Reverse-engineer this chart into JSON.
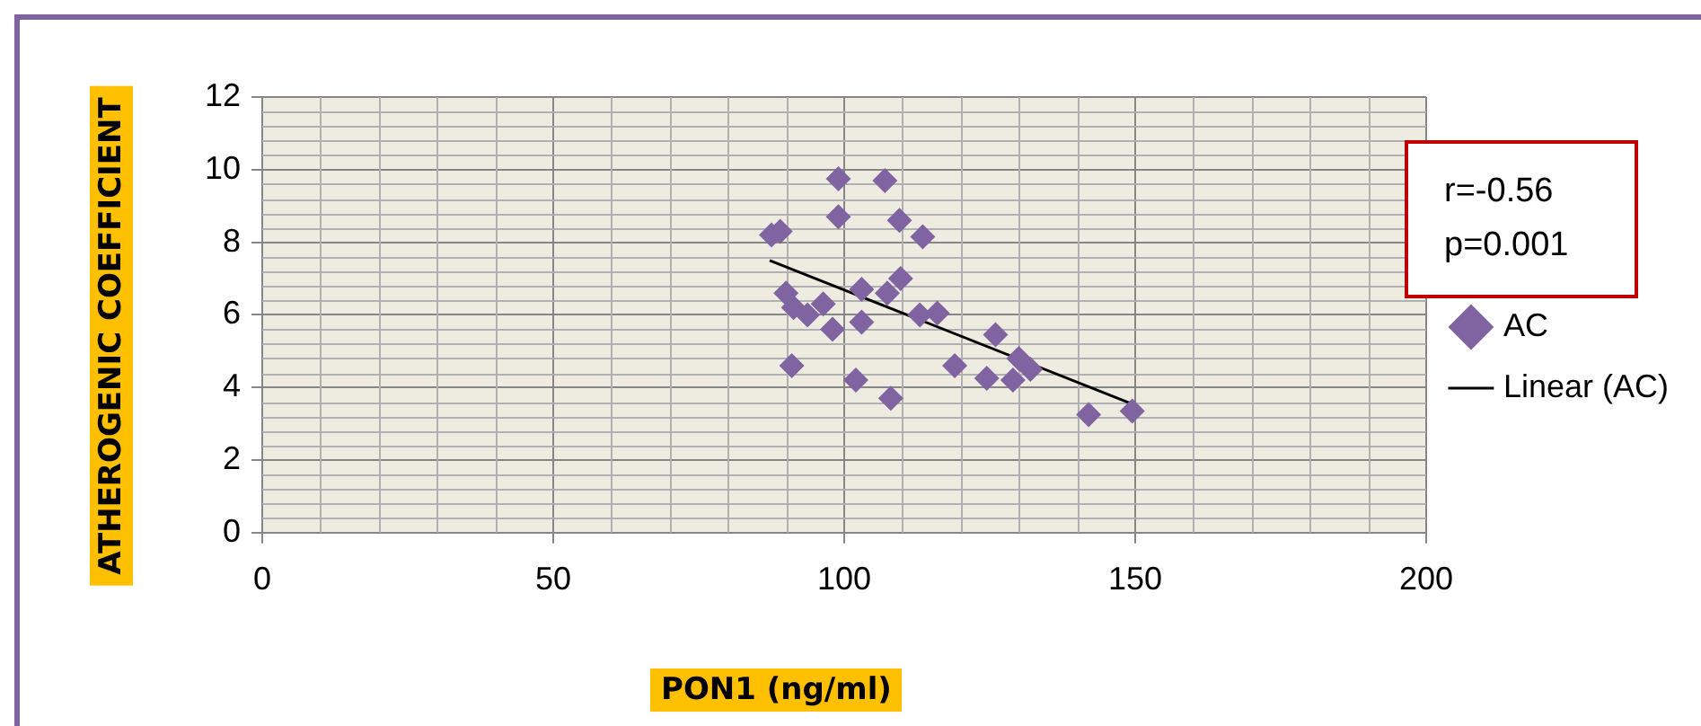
{
  "chart_data": {
    "type": "scatter",
    "xlabel": "PON1 (ng/ml)",
    "ylabel": "ATHEROGENIC COEFFICIENT",
    "annotations": [
      "r=-0.56",
      "p=0.001"
    ],
    "xlim": [
      0,
      200
    ],
    "xticks": [
      0,
      50,
      100,
      150,
      200
    ],
    "ylim": [
      0,
      12
    ],
    "yticks": [
      0,
      2,
      4,
      6,
      8,
      10,
      12
    ],
    "grid": true,
    "legend": "right",
    "marker": "diamond",
    "series": [
      {
        "name": "AC",
        "color": "#8064a2",
        "x": [
          87.5,
          89,
          99,
          107,
          99,
          109.5,
          113.5,
          109.7,
          103,
          107.4,
          113,
          116,
          103,
          98,
          90,
          93.7,
          96.4,
          91.3,
          91,
          102,
          108,
          119,
          124.5,
          126,
          129,
          130,
          132,
          142,
          149.5
        ],
        "values": [
          8.2,
          8.3,
          9.75,
          9.7,
          8.7,
          8.6,
          8.15,
          7.0,
          6.7,
          6.6,
          6.0,
          6.05,
          5.8,
          5.6,
          6.6,
          6.0,
          6.3,
          6.2,
          4.6,
          4.2,
          3.7,
          4.6,
          4.25,
          5.45,
          4.2,
          4.8,
          4.5,
          3.25,
          3.35
        ]
      },
      {
        "name": "Linear (AC)",
        "type": "line",
        "color": "#000000",
        "x": [
          87.2,
          149.4
        ],
        "values": [
          7.5,
          3.55
        ],
        "marker": "none",
        "line_style": "solid"
      }
    ]
  }
}
